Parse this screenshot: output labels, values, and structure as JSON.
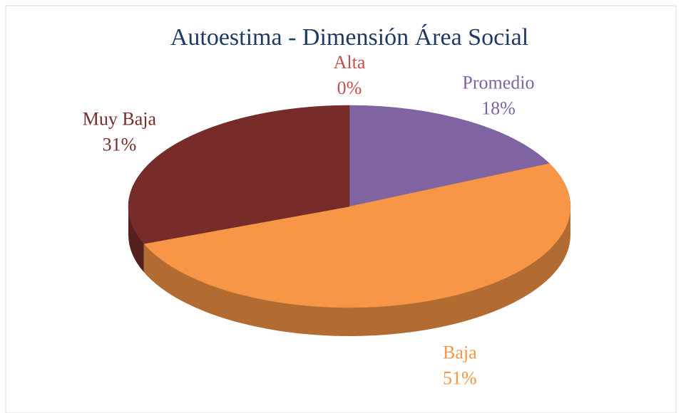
{
  "chart_data": {
    "type": "pie",
    "title": "Autoestima - Dimensión Área Social",
    "categories": [
      "Alta",
      "Promedio",
      "Baja",
      "Muy Baja"
    ],
    "values": [
      0,
      18,
      51,
      31
    ],
    "value_labels": [
      "0%",
      "18%",
      "51%",
      "31%"
    ],
    "colors": [
      "#c0504d",
      "#8064a2",
      "#f79646",
      "#772c2a"
    ]
  }
}
